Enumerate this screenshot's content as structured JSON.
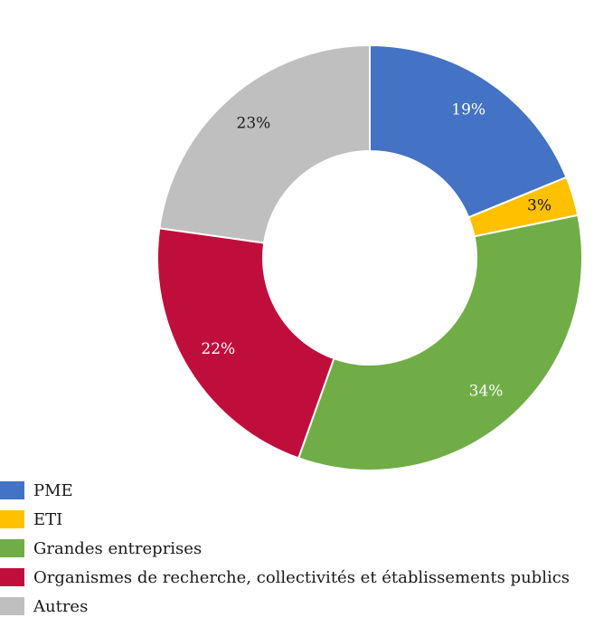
{
  "chart_data": {
    "type": "pie",
    "variant": "donut",
    "title": "",
    "categories": [
      "PME",
      "ETI",
      "Grandes entreprises",
      "Organismes de recherche, collectivités et établissements publics",
      "Autres"
    ],
    "values": [
      19,
      3,
      34,
      22,
      23
    ],
    "data_labels": [
      "19%",
      "3%",
      "34%",
      "22%",
      "23%"
    ],
    "colors": [
      "#4472c4",
      "#ffc000",
      "#70ad47",
      "#c00e3c",
      "#bfbfbf"
    ],
    "label_colors": [
      "#ffffff",
      "#1a1a1a",
      "#ffffff",
      "#ffffff",
      "#1a1a1a"
    ],
    "legend_position": "bottom-left"
  }
}
